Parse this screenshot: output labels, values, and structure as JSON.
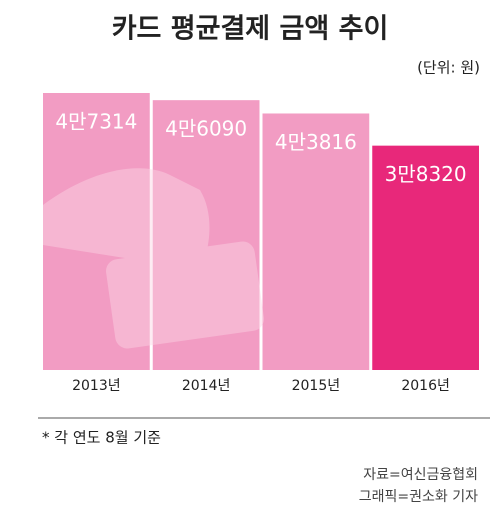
{
  "chart_data": {
    "type": "bar",
    "title": "카드 평균결제 금액 추이",
    "subtitle": "(단위: 원)",
    "categories": [
      "2013년",
      "2014년",
      "2015년",
      "2016년"
    ],
    "values": [
      47314,
      46090,
      43816,
      38320
    ],
    "value_labels": [
      "4만7314",
      "4만6090",
      "4만3816",
      "3만8320"
    ],
    "colors": [
      "#f29cc3",
      "#f29cc3",
      "#f29cc3",
      "#e8287a"
    ],
    "note": "* 각 연도 8월 기준",
    "source": "자료=여신금융협회",
    "credit": "그래픽=권소화 기자"
  }
}
